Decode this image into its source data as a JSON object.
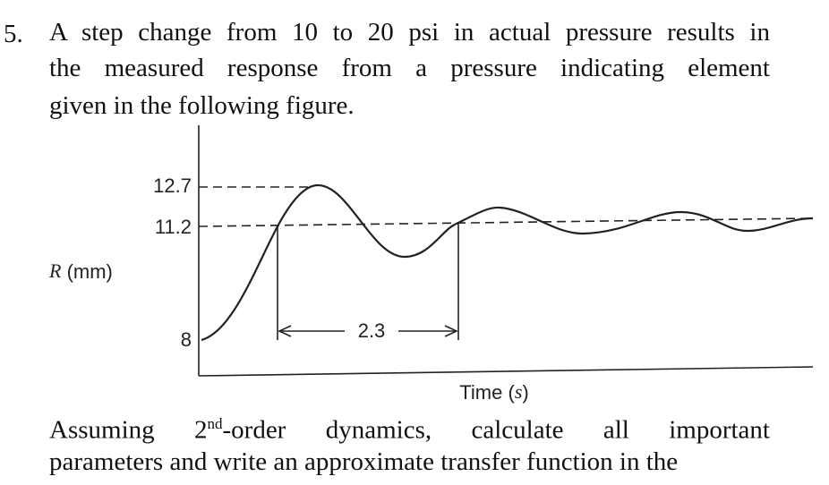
{
  "question": {
    "number": "5.",
    "lines": [
      "A step change from 10 to 20 psi in actual pressure results in",
      "the measured response from a pressure indicating element",
      "given in the following figure."
    ]
  },
  "figure": {
    "y_label": [
      "R",
      " (mm)"
    ],
    "y_ticks": [
      "12.7",
      "11.2",
      "8"
    ],
    "x_label": [
      "Time (",
      "s",
      ")"
    ],
    "period_label": "2.3"
  },
  "follow_up": {
    "line1": [
      "Assuming 2",
      "nd",
      "-order dynamics, calculate all important"
    ],
    "line2": "parameters and write an approximate transfer function in the"
  }
}
